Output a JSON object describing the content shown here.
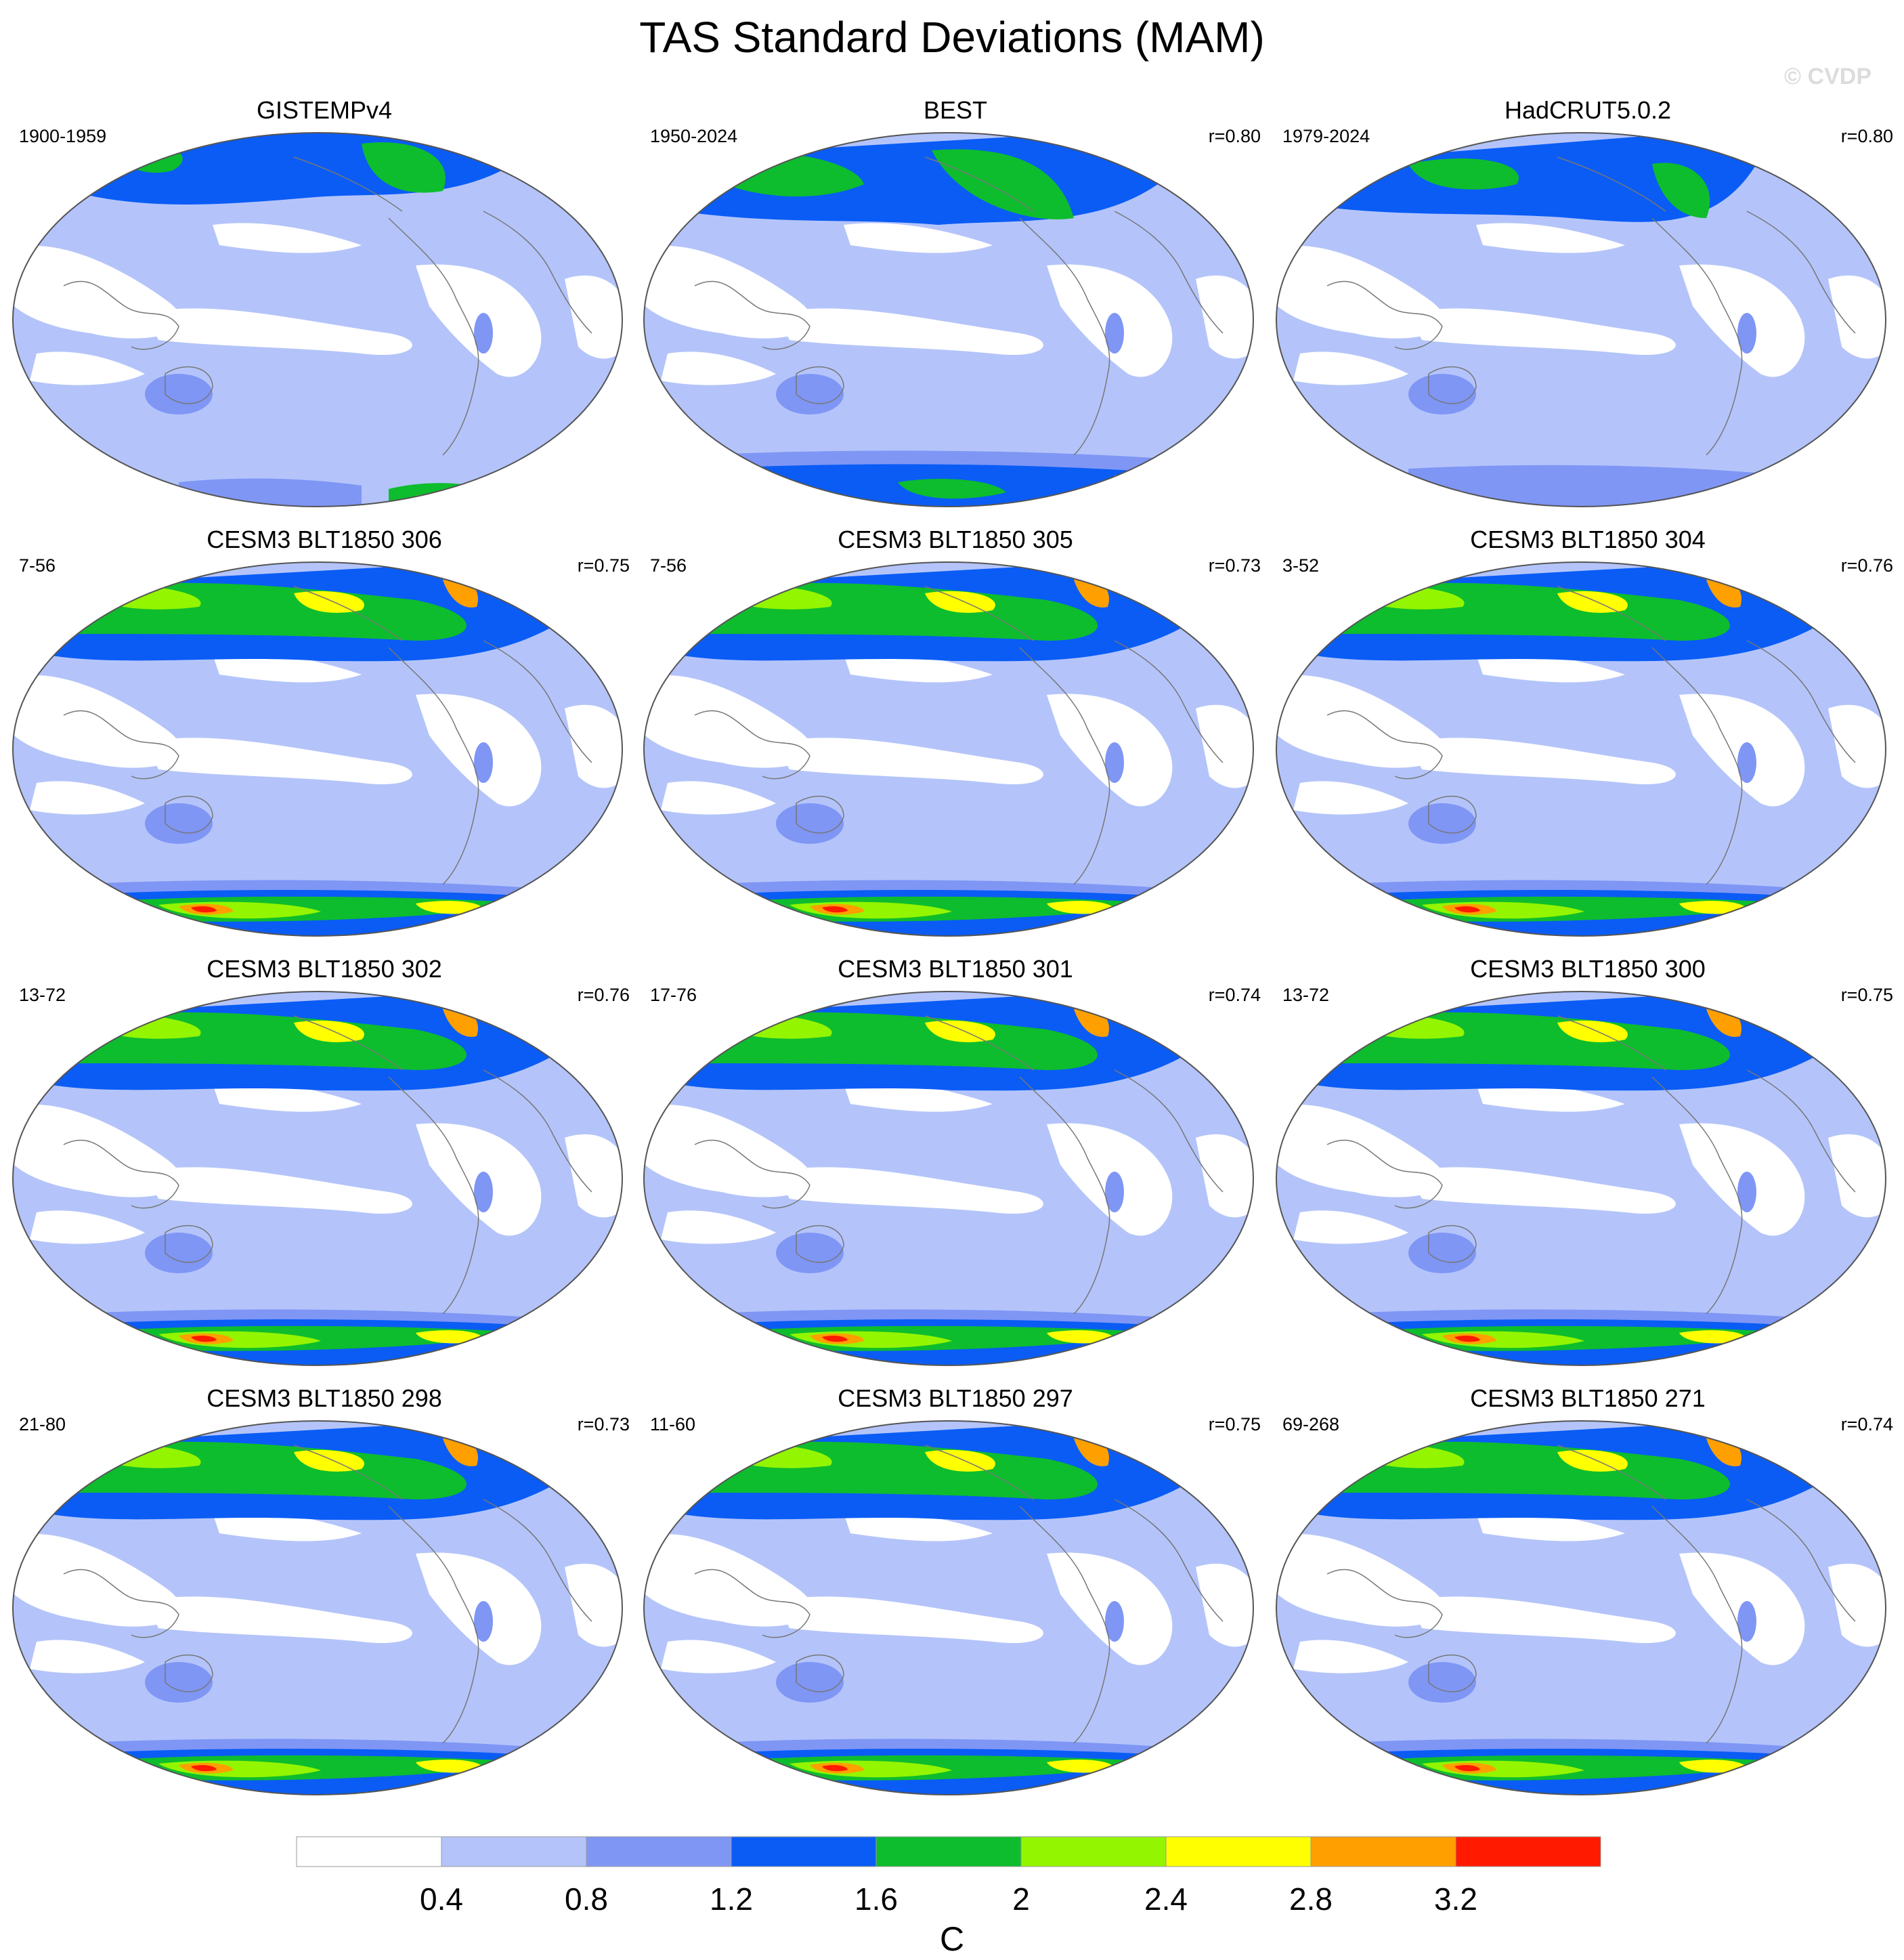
{
  "title": "TAS Standard Deviations (MAM)",
  "watermark": "© CVDP",
  "panels": [
    {
      "title": "GISTEMPv4",
      "years": "1900-1959",
      "r": "",
      "kind": "obs1"
    },
    {
      "title": "BEST",
      "years": "1950-2024",
      "r": "r=0.80",
      "kind": "obs2"
    },
    {
      "title": "HadCRUT5.0.2",
      "years": "1979-2024",
      "r": "r=0.80",
      "kind": "obs3"
    },
    {
      "title": "CESM3 BLT1850 306",
      "years": "7-56",
      "r": "r=0.75",
      "kind": "model"
    },
    {
      "title": "CESM3 BLT1850 305",
      "years": "7-56",
      "r": "r=0.73",
      "kind": "model"
    },
    {
      "title": "CESM3 BLT1850 304",
      "years": "3-52",
      "r": "r=0.76",
      "kind": "model"
    },
    {
      "title": "CESM3 BLT1850 302",
      "years": "13-72",
      "r": "r=0.76",
      "kind": "model"
    },
    {
      "title": "CESM3 BLT1850 301",
      "years": "17-76",
      "r": "r=0.74",
      "kind": "model"
    },
    {
      "title": "CESM3 BLT1850 300",
      "years": "13-72",
      "r": "r=0.75",
      "kind": "model"
    },
    {
      "title": "CESM3 BLT1850 298",
      "years": "21-80",
      "r": "r=0.73",
      "kind": "model"
    },
    {
      "title": "CESM3 BLT1850 297",
      "years": "11-60",
      "r": "r=0.75",
      "kind": "model"
    },
    {
      "title": "CESM3 BLT1850 271",
      "years": "69-268",
      "r": "r=0.74",
      "kind": "model"
    }
  ],
  "colorbar": {
    "unit": "C",
    "ticks": [
      "0.4",
      "0.8",
      "1.2",
      "1.6",
      "2",
      "2.4",
      "2.8",
      "3.2"
    ],
    "colors": [
      "#ffffff",
      "#b4c4fa",
      "#7f96f5",
      "#0a5cf5",
      "#0dbd2d",
      "#93f500",
      "#ffff00",
      "#ffa000",
      "#ff1a00"
    ]
  }
}
